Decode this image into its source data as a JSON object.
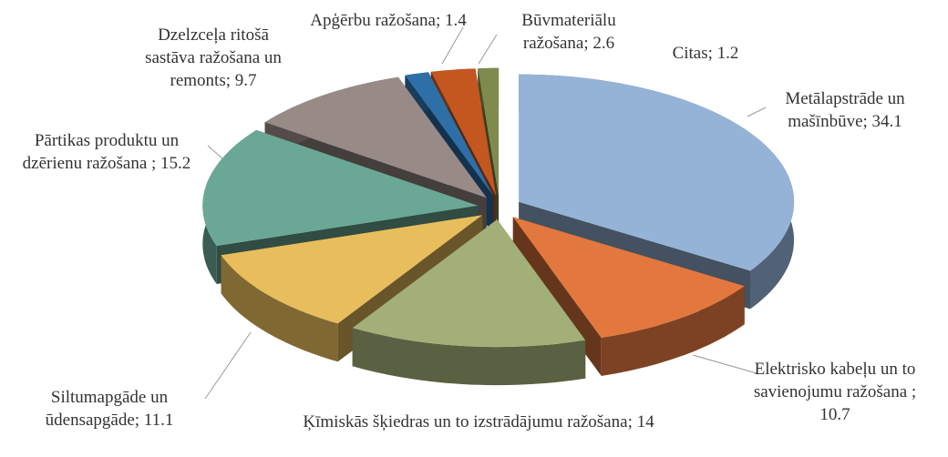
{
  "chart_data": {
    "type": "pie3d",
    "categories": [
      "Metālapstrāde un mašīnbūve",
      "Elektrisko kabeļu un to savienojumu ražošana",
      "Ķīmiskās šķiedras un to izstrādājumu ražošana",
      "Siltumapgāde un ūdensapgāde",
      "Pārtikas produktu un dzērienu ražošana",
      "Dzelzceļa ritošā sastāva ražošana un remonts",
      "Apģērbu ražošana",
      "Būvmateriālu ražošana",
      "Citas"
    ],
    "values": [
      34.1,
      10.7,
      14,
      11.1,
      15.2,
      9.7,
      1.4,
      2.6,
      1.2
    ],
    "value_labels": [
      "; 34.1",
      " ; 10.7",
      "; 14",
      "; 11.1",
      " ; 15.2",
      "; 9.7",
      "; 1.4",
      "; 2.6",
      "; 1.2"
    ],
    "colors": [
      "#95b3d7",
      "#e3783f",
      "#a3af78",
      "#e8bd5c",
      "#6aa895",
      "#978a87",
      "#2f6fa8",
      "#c4561f",
      "#7f8b4c"
    ]
  }
}
